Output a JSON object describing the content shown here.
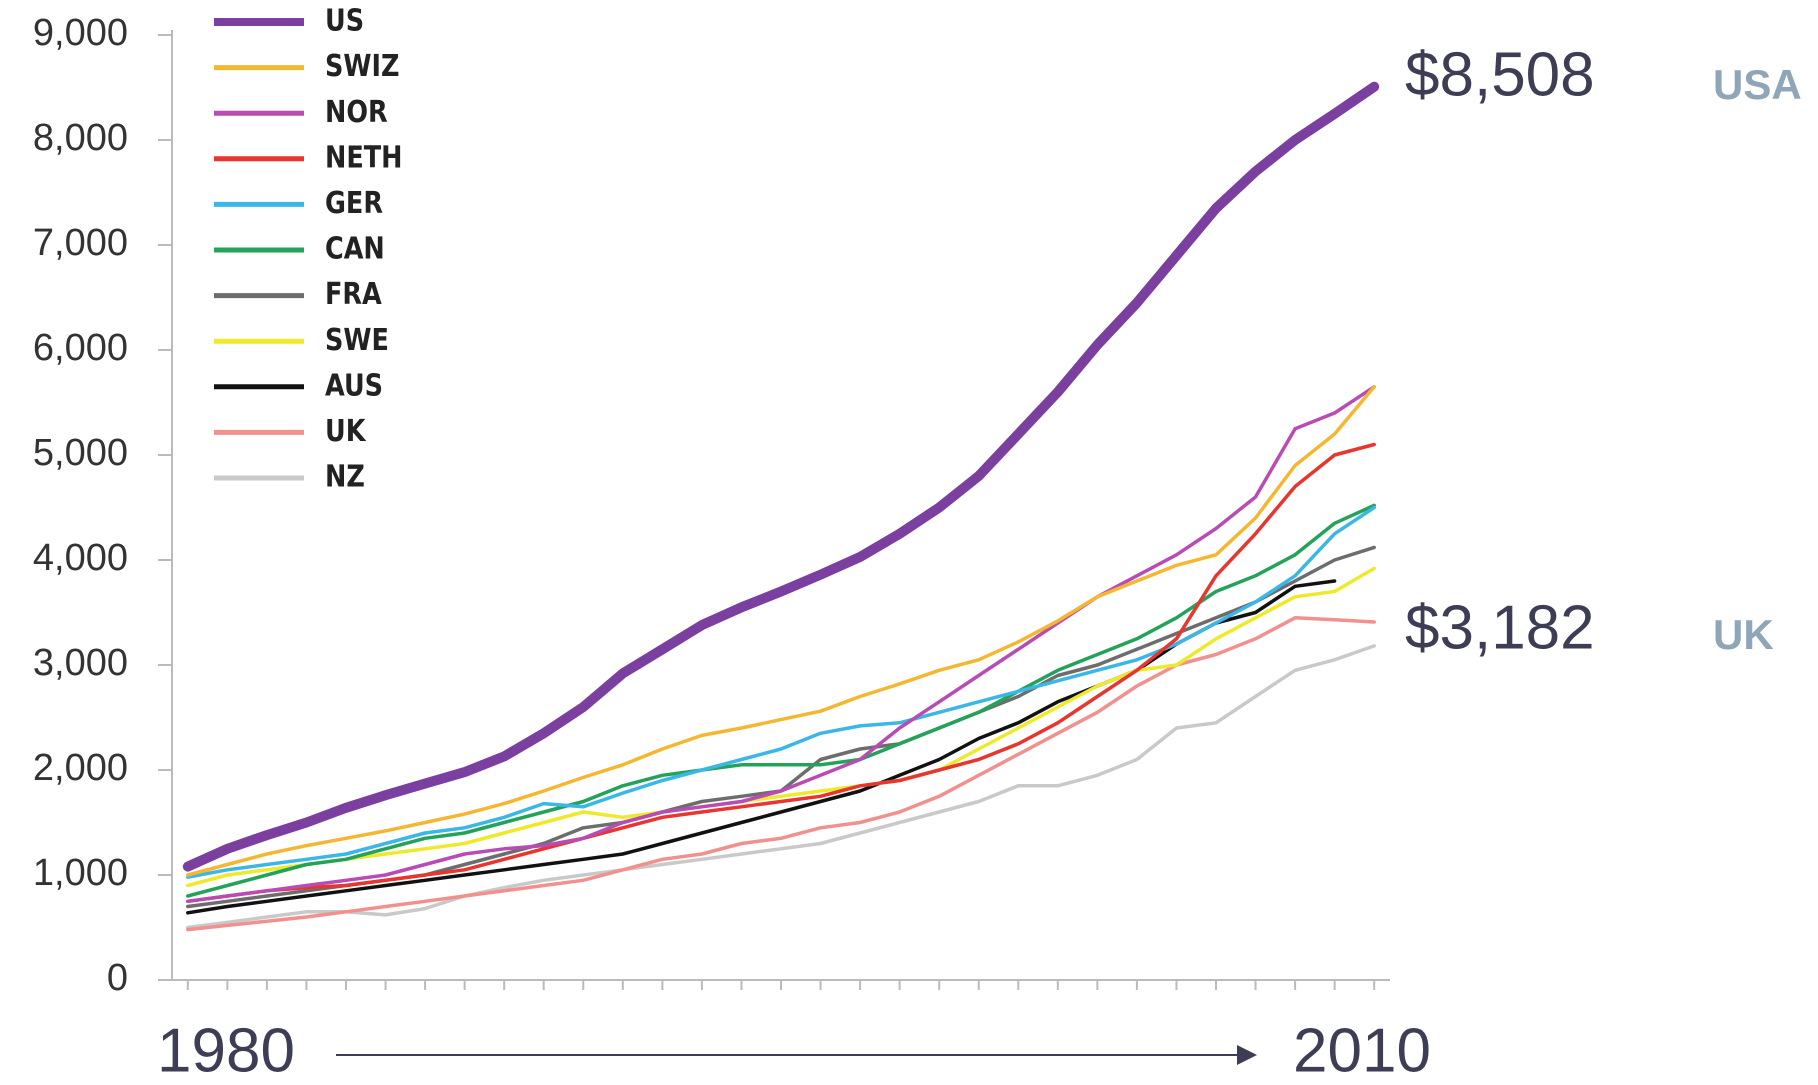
{
  "chart_data": {
    "type": "line",
    "x": [
      1980,
      1981,
      1982,
      1983,
      1984,
      1985,
      1986,
      1987,
      1988,
      1989,
      1990,
      1991,
      1992,
      1993,
      1994,
      1995,
      1996,
      1997,
      1998,
      1999,
      2000,
      2001,
      2002,
      2003,
      2004,
      2005,
      2006,
      2007,
      2008,
      2009,
      2010
    ],
    "xlim": [
      1979.6,
      2010.4
    ],
    "ylim": [
      0,
      9000
    ],
    "yticks": [
      0,
      {
        "value": 1000,
        "label": "1,000"
      },
      {
        "value": 2000,
        "label": "2,000"
      },
      {
        "value": 3000,
        "label": "3,000"
      },
      {
        "value": 4000,
        "label": "4,000"
      },
      {
        "value": 5000,
        "label": "5,000"
      },
      {
        "value": 6000,
        "label": "6,000"
      },
      {
        "value": 7000,
        "label": "7,000"
      },
      {
        "value": 8000,
        "label": "8,000"
      },
      {
        "value": 9000,
        "label": "9,000"
      }
    ],
    "legend": "upper left",
    "series": [
      {
        "name": "US",
        "color": "#7b3fa0",
        "values": [
          1080,
          1250,
          1380,
          1500,
          1640,
          1760,
          1870,
          1980,
          2130,
          2350,
          2600,
          2920,
          3150,
          3380,
          3550,
          3700,
          3860,
          4030,
          4250,
          4500,
          4800,
          5200,
          5600,
          6050,
          6450,
          6900,
          7350,
          7700,
          8000,
          8250,
          8508
        ]
      },
      {
        "name": "SWIZ",
        "color": "#f5b731",
        "values": [
          1000,
          1100,
          1200,
          1280,
          1350,
          1420,
          1500,
          1580,
          1680,
          1800,
          1930,
          2050,
          2200,
          2330,
          2400,
          2480,
          2560,
          2700,
          2820,
          2950,
          3050,
          3220,
          3420,
          3650,
          3800,
          3950,
          4050,
          4400,
          4900,
          5200,
          5650
        ]
      },
      {
        "name": "NOR",
        "color": "#b94bb5",
        "values": [
          750,
          800,
          850,
          900,
          950,
          1000,
          1100,
          1200,
          1250,
          1280,
          1350,
          1500,
          1600,
          1650,
          1700,
          1800,
          1950,
          2100,
          2400,
          2650,
          2900,
          3150,
          3400,
          3650,
          3850,
          4050,
          4300,
          4600,
          5250,
          5400,
          5650
        ]
      },
      {
        "name": "NETH",
        "color": "#e8352e",
        "values": [
          750,
          800,
          850,
          880,
          900,
          950,
          1000,
          1050,
          1150,
          1250,
          1350,
          1450,
          1550,
          1600,
          1650,
          1700,
          1750,
          1850,
          1900,
          2000,
          2100,
          2250,
          2450,
          2700,
          2950,
          3250,
          3850,
          4250,
          4700,
          5000,
          5100
        ]
      },
      {
        "name": "GER",
        "color": "#3ab7e6",
        "values": [
          980,
          1050,
          1100,
          1150,
          1200,
          1300,
          1400,
          1450,
          1550,
          1680,
          1650,
          1780,
          1900,
          2000,
          2100,
          2200,
          2350,
          2420,
          2450,
          2550,
          2650,
          2750,
          2850,
          2950,
          3050,
          3200,
          3400,
          3600,
          3850,
          4250,
          4500
        ]
      },
      {
        "name": "CAN",
        "color": "#23a35a",
        "values": [
          800,
          900,
          1000,
          1100,
          1150,
          1250,
          1350,
          1400,
          1500,
          1600,
          1700,
          1850,
          1950,
          2000,
          2050,
          2050,
          2050,
          2100,
          2250,
          2400,
          2550,
          2750,
          2950,
          3100,
          3250,
          3450,
          3700,
          3850,
          4050,
          4350,
          4520
        ]
      },
      {
        "name": "FRA",
        "color": "#6d6d6d",
        "values": [
          700,
          750,
          800,
          850,
          900,
          950,
          1000,
          1100,
          1200,
          1300,
          1450,
          1500,
          1600,
          1700,
          1750,
          1800,
          2100,
          2200,
          2250,
          2400,
          2550,
          2700,
          2900,
          3000,
          3150,
          3300,
          3450,
          3600,
          3800,
          4000,
          4120
        ]
      },
      {
        "name": "SWE",
        "color": "#eeea2a",
        "values": [
          900,
          1000,
          1050,
          1100,
          1150,
          1200,
          1250,
          1300,
          1400,
          1500,
          1600,
          1550,
          1600,
          1650,
          1700,
          1750,
          1800,
          1850,
          1900,
          2000,
          2200,
          2400,
          2600,
          2800,
          2950,
          3000,
          3250,
          3450,
          3650,
          3700,
          3920
        ]
      },
      {
        "name": "AUS",
        "color": "#111111",
        "values": [
          640,
          700,
          750,
          800,
          850,
          900,
          950,
          1000,
          1050,
          1100,
          1150,
          1200,
          1300,
          1400,
          1500,
          1600,
          1700,
          1800,
          1950,
          2100,
          2300,
          2450,
          2650,
          2800,
          2950,
          3200,
          3400,
          3500,
          3750,
          3800,
          null
        ]
      },
      {
        "name": "UK",
        "color": "#f2908e",
        "values": [
          480,
          520,
          560,
          600,
          650,
          700,
          750,
          800,
          850,
          900,
          950,
          1050,
          1150,
          1200,
          1300,
          1350,
          1450,
          1500,
          1600,
          1750,
          1950,
          2150,
          2350,
          2550,
          2800,
          3000,
          3100,
          3250,
          3450,
          3430,
          3410
        ]
      },
      {
        "name": "NZ",
        "color": "#c9c9c9",
        "values": [
          500,
          550,
          600,
          650,
          650,
          620,
          680,
          800,
          880,
          950,
          1000,
          1050,
          1100,
          1150,
          1200,
          1250,
          1300,
          1400,
          1500,
          1600,
          1700,
          1850,
          1850,
          1950,
          2100,
          2400,
          2450,
          2700,
          2950,
          3050,
          3182
        ]
      }
    ],
    "annotations": [
      "$8,508",
      "USA",
      "$3,182",
      "UK"
    ],
    "x_range_labels": [
      "1980",
      "2010"
    ]
  }
}
